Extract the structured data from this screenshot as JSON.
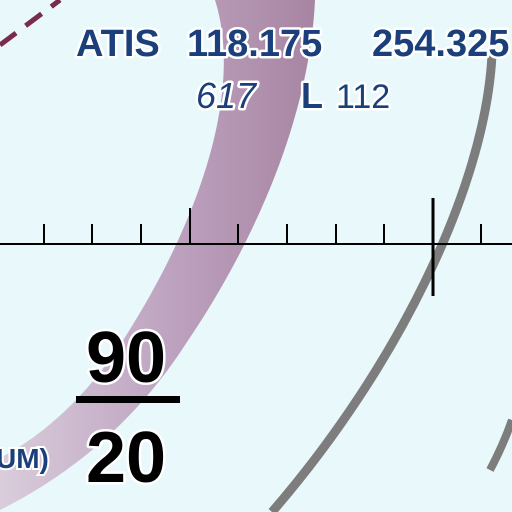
{
  "chart_map": {
    "atis_label": "ATIS",
    "atis_freq_1": "118.175",
    "atis_freq_2": "254.325",
    "info_line_number": "617",
    "info_line_letter": "L",
    "info_line_value": "112",
    "altitude_ceiling": "90",
    "altitude_floor": "20",
    "partial_label": "UM)"
  },
  "colors": {
    "background": "#e8f8fb",
    "frequency_text": "#1a3f7a",
    "airspace_band": "#b8a0b8",
    "boundary_gray": "#808080",
    "dashed_boundary": "#7a2a4a",
    "scale_black": "#000000"
  }
}
